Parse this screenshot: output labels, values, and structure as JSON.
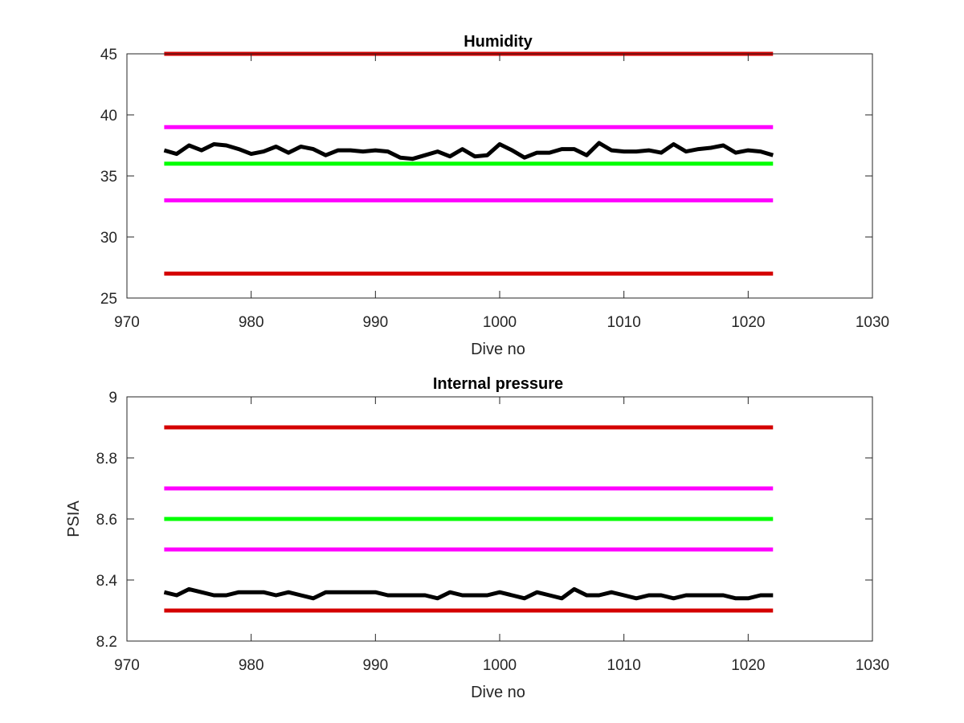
{
  "figure": {
    "background": "#ffffff",
    "axis_color": "#262626"
  },
  "chart_data": [
    {
      "type": "line",
      "title": "Humidity",
      "xlabel": "Dive no",
      "ylabel": "",
      "xlim": [
        970,
        1030
      ],
      "ylim": [
        25,
        45
      ],
      "xticks": [
        970,
        980,
        990,
        1000,
        1010,
        1020,
        1030
      ],
      "yticks": [
        25,
        30,
        35,
        40,
        45
      ],
      "xtick_labels": [
        "970",
        "980",
        "990",
        "1000",
        "1010",
        "1020",
        "1030"
      ],
      "ytick_labels": [
        "25",
        "30",
        "35",
        "40",
        "45"
      ],
      "grid": false,
      "series": [
        {
          "kind": "hline",
          "color": "#d40000",
          "x": [
            973,
            1022
          ],
          "value": 45
        },
        {
          "kind": "hline",
          "color": "#ff00ff",
          "x": [
            973,
            1022
          ],
          "value": 39
        },
        {
          "kind": "hline",
          "color": "#00ff00",
          "x": [
            973,
            1022
          ],
          "value": 36
        },
        {
          "kind": "hline",
          "color": "#ff00ff",
          "x": [
            973,
            1022
          ],
          "value": 33
        },
        {
          "kind": "hline",
          "color": "#d40000",
          "x": [
            973,
            1022
          ],
          "value": 27
        },
        {
          "kind": "line",
          "color": "#000000",
          "x": [
            973,
            974,
            975,
            976,
            977,
            978,
            979,
            980,
            981,
            982,
            983,
            984,
            985,
            986,
            987,
            988,
            989,
            990,
            991,
            992,
            993,
            994,
            995,
            996,
            997,
            998,
            999,
            1000,
            1001,
            1002,
            1003,
            1004,
            1005,
            1006,
            1007,
            1008,
            1009,
            1010,
            1011,
            1012,
            1013,
            1014,
            1015,
            1016,
            1017,
            1018,
            1019,
            1020,
            1021,
            1022
          ],
          "values": [
            37.1,
            36.8,
            37.5,
            37.1,
            37.6,
            37.5,
            37.2,
            36.8,
            37.0,
            37.4,
            36.9,
            37.4,
            37.2,
            36.7,
            37.1,
            37.1,
            37.0,
            37.1,
            37.0,
            36.5,
            36.4,
            36.7,
            37.0,
            36.6,
            37.2,
            36.6,
            36.7,
            37.6,
            37.1,
            36.5,
            36.9,
            36.9,
            37.2,
            37.2,
            36.7,
            37.7,
            37.1,
            37.0,
            37.0,
            37.1,
            36.9,
            37.6,
            37.0,
            37.2,
            37.3,
            37.5,
            36.9,
            37.1,
            37.0,
            36.7
          ]
        }
      ]
    },
    {
      "type": "line",
      "title": "Internal pressure",
      "xlabel": "Dive no",
      "ylabel": "PSIA",
      "xlim": [
        970,
        1030
      ],
      "ylim": [
        8.2,
        9.0
      ],
      "xticks": [
        970,
        980,
        990,
        1000,
        1010,
        1020,
        1030
      ],
      "yticks": [
        8.2,
        8.4,
        8.6,
        8.8,
        9.0
      ],
      "xtick_labels": [
        "970",
        "980",
        "990",
        "1000",
        "1010",
        "1020",
        "1030"
      ],
      "ytick_labels": [
        "8.2",
        "8.4",
        "8.6",
        "8.8",
        "9"
      ],
      "grid": false,
      "series": [
        {
          "kind": "hline",
          "color": "#d40000",
          "x": [
            973,
            1022
          ],
          "value": 8.9
        },
        {
          "kind": "hline",
          "color": "#ff00ff",
          "x": [
            973,
            1022
          ],
          "value": 8.7
        },
        {
          "kind": "hline",
          "color": "#00ff00",
          "x": [
            973,
            1022
          ],
          "value": 8.6
        },
        {
          "kind": "hline",
          "color": "#ff00ff",
          "x": [
            973,
            1022
          ],
          "value": 8.5
        },
        {
          "kind": "hline",
          "color": "#d40000",
          "x": [
            973,
            1022
          ],
          "value": 8.3
        },
        {
          "kind": "line",
          "color": "#000000",
          "x": [
            973,
            974,
            975,
            976,
            977,
            978,
            979,
            980,
            981,
            982,
            983,
            984,
            985,
            986,
            987,
            988,
            989,
            990,
            991,
            992,
            993,
            994,
            995,
            996,
            997,
            998,
            999,
            1000,
            1001,
            1002,
            1003,
            1004,
            1005,
            1006,
            1007,
            1008,
            1009,
            1010,
            1011,
            1012,
            1013,
            1014,
            1015,
            1016,
            1017,
            1018,
            1019,
            1020,
            1021,
            1022
          ],
          "values": [
            8.36,
            8.35,
            8.37,
            8.36,
            8.35,
            8.35,
            8.36,
            8.36,
            8.36,
            8.35,
            8.36,
            8.35,
            8.34,
            8.36,
            8.36,
            8.36,
            8.36,
            8.36,
            8.35,
            8.35,
            8.35,
            8.35,
            8.34,
            8.36,
            8.35,
            8.35,
            8.35,
            8.36,
            8.35,
            8.34,
            8.36,
            8.35,
            8.34,
            8.37,
            8.35,
            8.35,
            8.36,
            8.35,
            8.34,
            8.35,
            8.35,
            8.34,
            8.35,
            8.35,
            8.35,
            8.35,
            8.34,
            8.34,
            8.35,
            8.35
          ]
        }
      ]
    }
  ]
}
